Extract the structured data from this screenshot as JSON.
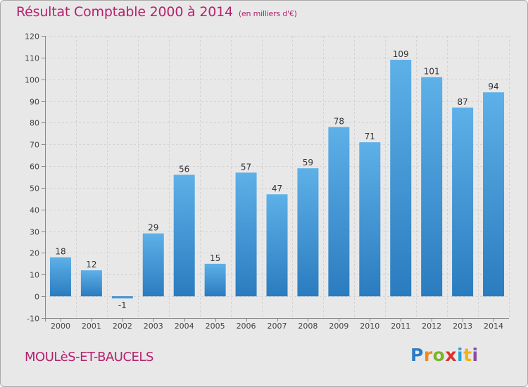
{
  "title": "Résultat Comptable 2000 à 2014",
  "subtitle": "(en milliers d'€)",
  "commune": "MOULèS-ET-BAUCELS",
  "logo_text": "Proxiti",
  "colors": {
    "title": "#b5226e",
    "bar_light": "#5eb0e8",
    "bar_dark": "#2a7cbf",
    "background": "#e8e8e8"
  },
  "chart_data": {
    "type": "bar",
    "title": "Résultat Comptable 2000 à 2014",
    "subtitle": "(en milliers d'€)",
    "xlabel": "",
    "ylabel": "",
    "ylim": [
      -10,
      120
    ],
    "yticks": [
      -10,
      0,
      10,
      20,
      30,
      40,
      50,
      60,
      70,
      80,
      90,
      100,
      110,
      120
    ],
    "grid": true,
    "categories": [
      "2000",
      "2001",
      "2002",
      "2003",
      "2004",
      "2005",
      "2006",
      "2007",
      "2008",
      "2009",
      "2010",
      "2011",
      "2012",
      "2013",
      "2014"
    ],
    "values": [
      18,
      12,
      -1,
      29,
      56,
      15,
      57,
      47,
      59,
      78,
      71,
      109,
      101,
      87,
      94
    ]
  }
}
